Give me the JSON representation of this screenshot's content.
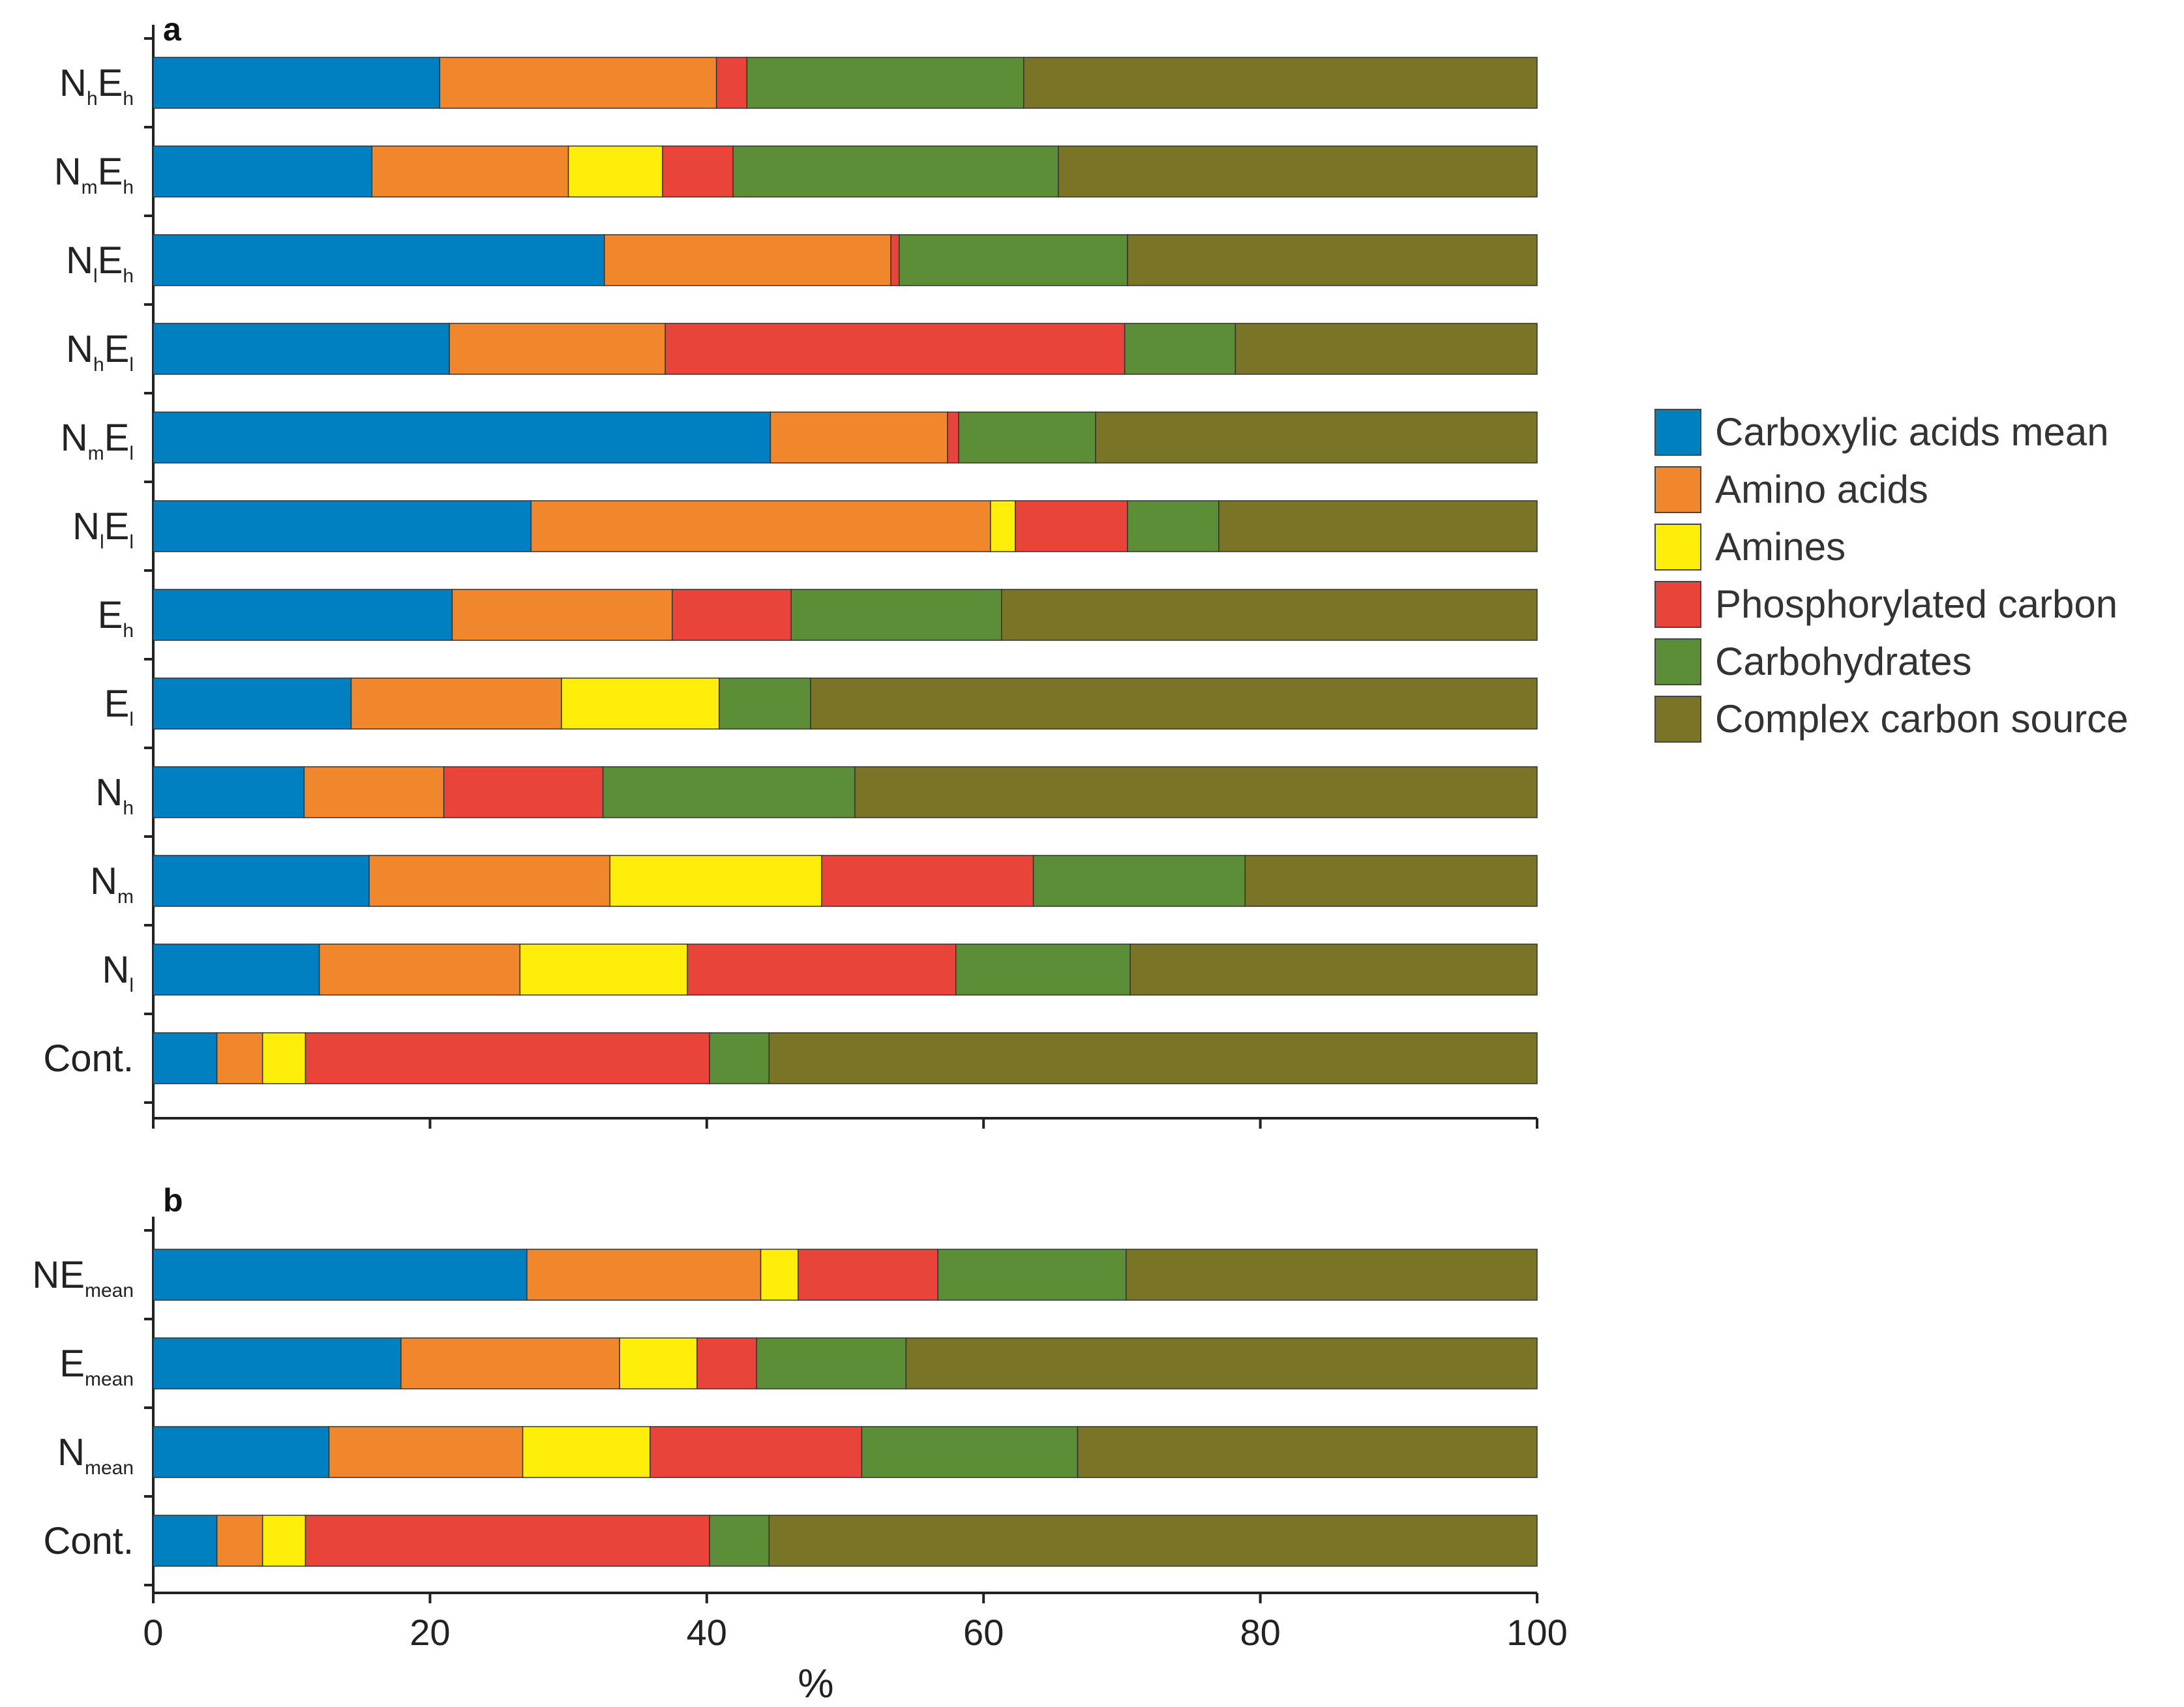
{
  "chart_data": {
    "type": "bar",
    "orientation": "horizontal",
    "stacked": true,
    "xlabel": "%",
    "xlim": [
      0,
      100
    ],
    "xticks": [
      "0",
      "20",
      "40",
      "60",
      "80",
      "100"
    ],
    "legend": {
      "placement": "right",
      "entries": [
        {
          "name": "Carboxylic acids mean",
          "color": "#0080C0"
        },
        {
          "name": "Amino acids",
          "color": "#F0872D"
        },
        {
          "name": "Amines",
          "color": "#FFEE0A"
        },
        {
          "name": "Phosphorylated carbon",
          "color": "#E8443A"
        },
        {
          "name": "Carbohydrates",
          "color": "#5B8E36"
        },
        {
          "name": "Complex carbon source",
          "color": "#7A7426"
        }
      ]
    },
    "panels": [
      {
        "letter": "a",
        "categories": [
          {
            "base": "N",
            "sub": "h",
            "base2": "E",
            "sub2": "h",
            "values": [
              20.7,
              20.0,
              0.0,
              2.2,
              20.0,
              37.1
            ]
          },
          {
            "base": "N",
            "sub": "m",
            "base2": "E",
            "sub2": "h",
            "values": [
              15.8,
              14.2,
              6.8,
              5.1,
              23.5,
              34.6
            ]
          },
          {
            "base": "N",
            "sub": "l",
            "base2": "E",
            "sub2": "h",
            "values": [
              32.6,
              20.7,
              0.0,
              0.6,
              16.5,
              29.6
            ]
          },
          {
            "base": "N",
            "sub": "h",
            "base2": "E",
            "sub2": "l",
            "values": [
              21.4,
              15.6,
              0.0,
              33.2,
              8.0,
              21.8
            ]
          },
          {
            "base": "N",
            "sub": "m",
            "base2": "E",
            "sub2": "l",
            "values": [
              44.6,
              12.8,
              0.0,
              0.8,
              9.9,
              31.9
            ]
          },
          {
            "base": "N",
            "sub": "l",
            "base2": "E",
            "sub2": "l",
            "values": [
              27.3,
              33.2,
              1.8,
              8.1,
              6.6,
              23.0
            ]
          },
          {
            "base": "E",
            "sub": "h",
            "base2": "",
            "sub2": "",
            "values": [
              21.6,
              15.9,
              0.0,
              8.6,
              15.2,
              38.7
            ]
          },
          {
            "base": "E",
            "sub": "l",
            "base2": "",
            "sub2": "",
            "values": [
              14.3,
              15.2,
              11.4,
              0.0,
              6.6,
              52.5
            ]
          },
          {
            "base": "N",
            "sub": "h",
            "base2": "",
            "sub2": "",
            "values": [
              10.9,
              10.1,
              0.0,
              11.5,
              18.2,
              49.3
            ]
          },
          {
            "base": "N",
            "sub": "m",
            "base2": "",
            "sub2": "",
            "values": [
              15.6,
              17.4,
              15.3,
              15.3,
              15.3,
              21.1
            ]
          },
          {
            "base": "N",
            "sub": "l",
            "base2": "",
            "sub2": "",
            "values": [
              12.0,
              14.5,
              12.1,
              19.4,
              12.6,
              29.4
            ]
          },
          {
            "base": "Cont.",
            "sub": "",
            "base2": "",
            "sub2": "",
            "values": [
              4.6,
              3.3,
              3.1,
              29.2,
              4.3,
              55.5
            ]
          }
        ]
      },
      {
        "letter": "b",
        "categories": [
          {
            "base": "NE",
            "sub": "mean",
            "base2": "",
            "sub2": "",
            "values": [
              27.0,
              16.9,
              2.7,
              10.1,
              13.6,
              29.7
            ]
          },
          {
            "base": "E",
            "sub": "mean",
            "base2": "",
            "sub2": "",
            "values": [
              17.9,
              15.8,
              5.6,
              4.3,
              10.8,
              45.6
            ]
          },
          {
            "base": "N",
            "sub": "mean",
            "base2": "",
            "sub2": "",
            "values": [
              12.7,
              14.0,
              9.2,
              15.3,
              15.6,
              33.2
            ]
          },
          {
            "base": "Cont.",
            "sub": "",
            "base2": "",
            "sub2": "",
            "values": [
              4.6,
              3.3,
              3.1,
              29.2,
              4.3,
              55.5
            ]
          }
        ]
      }
    ]
  }
}
